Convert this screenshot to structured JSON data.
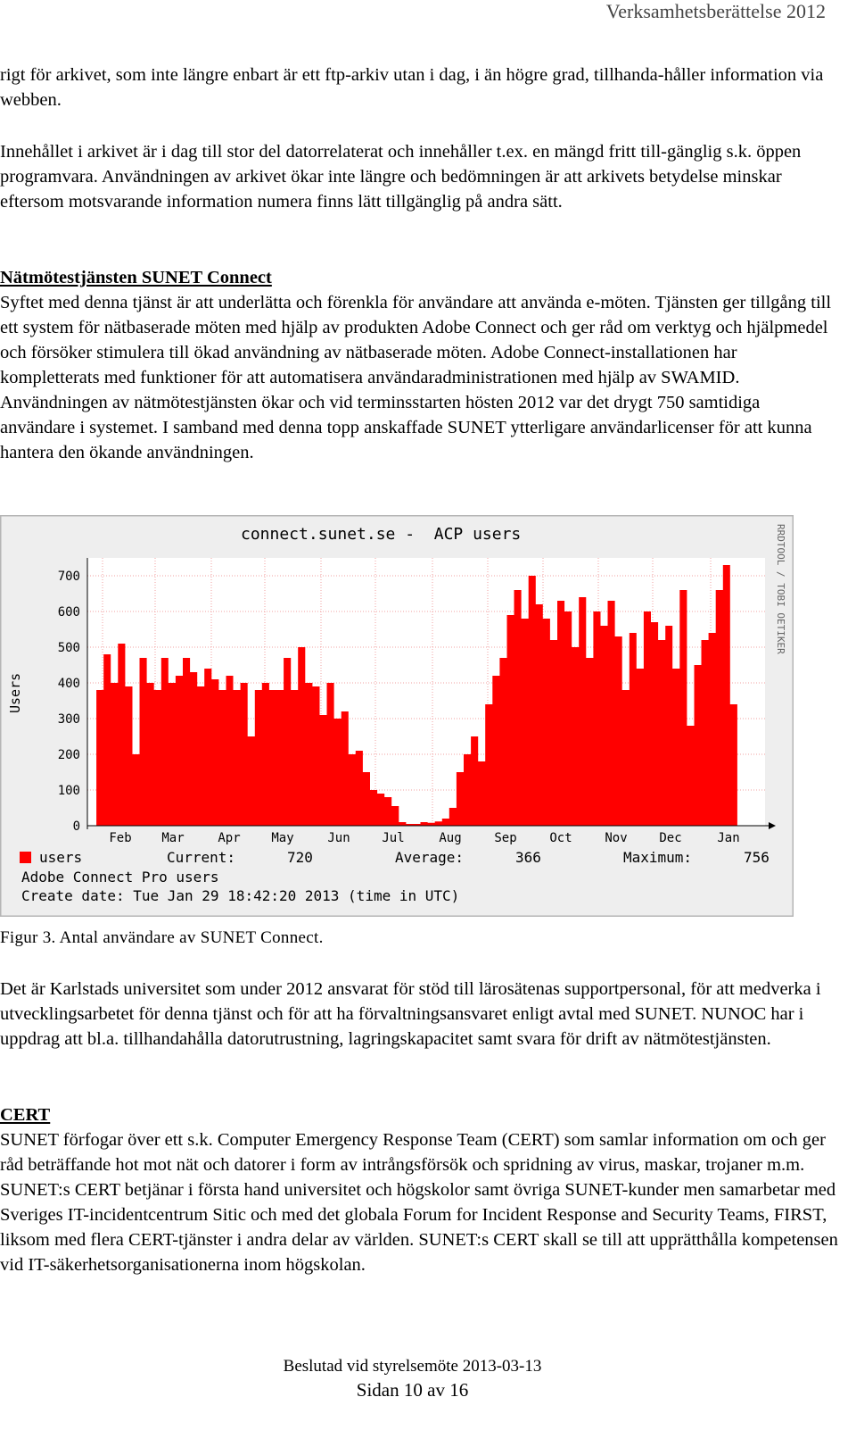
{
  "header": {
    "title": "Verksamhetsberättelse 2012"
  },
  "paragraphs": {
    "p1": "rigt för arkivet, som inte längre enbart är ett ftp-arkiv utan i dag, i än högre grad, tillhanda-håller information via webben.",
    "p2": "Innehållet i arkivet är i dag till stor del datorrelaterat och innehåller t.ex. en mängd fritt till-gänglig s.k. öppen programvara. Användningen av arkivet ökar inte längre och bedömningen är att arkivets betydelse minskar eftersom motsvarande information numera finns lätt tillgänglig på andra sätt."
  },
  "section1": {
    "heading": "Nätmötestjänsten SUNET Connect",
    "body": "Syftet med denna tjänst är att underlätta och förenkla för användare att använda e-möten. Tjänsten ger tillgång till ett system för nätbaserade möten med hjälp av produkten Adobe Connect och ger råd om verktyg och hjälpmedel och försöker stimulera till ökad användning av nätbaserade möten. Adobe Connect-installationen har kompletterats med funktioner för att automatisera användaradministrationen med hjälp av SWAMID.  Användningen av nätmötestjänsten ökar och vid terminsstarten hösten 2012 var det drygt 750 samtidiga användare i systemet. I samband med denna topp anskaffade SUNET ytterligare användarlicenser för att kunna hantera den ökande användningen."
  },
  "figure": {
    "caption": "Figur 3. Antal användare av SUNET Connect."
  },
  "paragraph4": "Det är Karlstads universitet som under 2012 ansvarat för stöd till lärosätenas supportpersonal, för att medverka i utvecklingsarbetet för denna tjänst och för att ha förvaltningsansvaret enligt avtal med SUNET. NUNOC har i uppdrag att bl.a. tillhandahålla datorutrustning, lagringskapacitet samt svara för drift av nätmötestjänsten.",
  "section2": {
    "heading": "CERT",
    "body": "SUNET förfogar över ett s.k. Computer Emergency Response Team (CERT) som samlar information om och ger råd beträffande hot mot nät och datorer i form av intrångsförsök och spridning av virus, maskar, trojaner m.m. SUNET:s CERT betjänar i första hand universitet och högskolor samt övriga SUNET-kunder men samarbetar med Sveriges IT-incidentcentrum Sitic och med det globala Forum for Incident Response and Security Teams, FIRST, liksom med flera CERT-tjänster i andra delar av världen. SUNET:s CERT skall se till att upprätthålla kompetensen vid IT-säkerhetsorganisationerna inom högskolan."
  },
  "footer": {
    "line1": "Beslutad vid styrelsemöte 2013-03-13",
    "line2": "Sidan 10 av 16"
  },
  "chart_data": {
    "type": "area",
    "title": "connect.sunet.se -  ACP users",
    "ylabel": "Users",
    "side_label": "RRDTOOL / TOBI OETIKER",
    "ylim": [
      0,
      750
    ],
    "yticks": [
      0,
      100,
      200,
      300,
      400,
      500,
      600,
      700
    ],
    "xlabels": [
      "Feb",
      "Mar",
      "Apr",
      "May",
      "Jun",
      "Jul",
      "Aug",
      "Sep",
      "Oct",
      "Nov",
      "Dec",
      "Jan"
    ],
    "series": [
      {
        "name": "users",
        "color": "#ff0000",
        "values": [
          0,
          380,
          480,
          400,
          510,
          390,
          200,
          470,
          400,
          380,
          470,
          400,
          420,
          470,
          430,
          390,
          440,
          410,
          380,
          420,
          380,
          400,
          250,
          380,
          400,
          380,
          380,
          470,
          380,
          500,
          400,
          390,
          310,
          400,
          300,
          320,
          200,
          210,
          150,
          100,
          90,
          80,
          55,
          10,
          5,
          5,
          10,
          8,
          12,
          20,
          50,
          150,
          200,
          250,
          180,
          340,
          420,
          470,
          590,
          660,
          580,
          700,
          620,
          580,
          520,
          630,
          600,
          500,
          640,
          470,
          600,
          560,
          630,
          530,
          380,
          540,
          440,
          600,
          570,
          520,
          560,
          440,
          660,
          280,
          450,
          520,
          540,
          660,
          730,
          340,
          0
        ]
      }
    ],
    "legend": {
      "series_label": "users",
      "current_label": "Current:",
      "current_value": "720",
      "average_label": "Average:",
      "average_value": "366",
      "maximum_label": "Maximum:",
      "maximum_value": "756",
      "line2": "Adobe Connect Pro users",
      "line3": "Create date: Tue Jan 29 18:42:20 2013 (time in UTC)"
    },
    "grid": true
  }
}
